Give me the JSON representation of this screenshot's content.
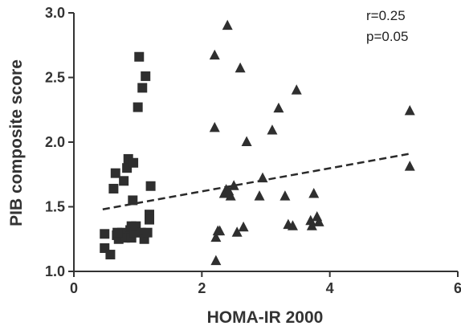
{
  "chart_data": {
    "type": "scatter",
    "xlabel": "HOMA-IR 2000",
    "ylabel": "PIB composite score",
    "xlim": [
      0,
      6
    ],
    "ylim": [
      1.0,
      3.0
    ],
    "xticks": [
      0,
      2,
      4,
      6
    ],
    "yticks": [
      1.0,
      1.5,
      2.0,
      2.5,
      3.0
    ],
    "xtick_labels": [
      "0",
      "2",
      "4",
      "6"
    ],
    "ytick_labels": [
      "1.0",
      "1.5",
      "2.0",
      "2.5",
      "3.0"
    ],
    "grid": false,
    "legend": "none",
    "annotations": [
      "r=0.25",
      "p=0.05"
    ],
    "marker_color": "#2f2f2f",
    "series": [
      {
        "marker": "square",
        "x": [
          0.48,
          0.48,
          0.57,
          0.62,
          0.65,
          0.67,
          0.7,
          0.75,
          0.78,
          0.8,
          0.83,
          0.85,
          0.88,
          0.88,
          0.9,
          0.9,
          0.92,
          0.93,
          0.95,
          0.97,
          1.0,
          1.02,
          1.05,
          1.07,
          1.1,
          1.12,
          1.15,
          1.18,
          1.18,
          1.2,
          0.68
        ],
        "y": [
          1.29,
          1.18,
          1.13,
          1.64,
          1.76,
          1.28,
          1.25,
          1.3,
          1.7,
          1.26,
          1.8,
          1.87,
          1.32,
          1.27,
          1.35,
          1.26,
          1.55,
          1.84,
          1.3,
          1.35,
          2.27,
          2.66,
          1.3,
          2.42,
          1.25,
          2.51,
          1.3,
          1.44,
          1.4,
          1.66,
          1.3
        ]
      },
      {
        "marker": "triangle",
        "x": [
          2.2,
          2.2,
          2.22,
          2.25,
          2.28,
          2.35,
          2.4,
          2.45,
          2.55,
          2.6,
          2.65,
          2.7,
          2.9,
          2.95,
          3.1,
          3.2,
          3.3,
          3.35,
          3.42,
          3.48,
          3.7,
          3.72,
          3.75,
          3.8,
          3.83,
          5.25,
          5.25,
          2.22,
          2.38,
          2.5,
          2.42
        ],
        "y": [
          2.67,
          2.11,
          1.26,
          1.31,
          1.31,
          1.6,
          2.9,
          1.58,
          1.3,
          2.57,
          1.34,
          2.0,
          1.58,
          1.72,
          2.09,
          2.26,
          1.58,
          1.36,
          1.35,
          2.4,
          1.39,
          1.35,
          1.6,
          1.42,
          1.38,
          2.24,
          1.81,
          1.08,
          1.63,
          1.66,
          1.62
        ]
      }
    ],
    "regression": {
      "style": "dashed",
      "x": [
        0.45,
        5.25
      ],
      "y": [
        1.48,
        1.91
      ]
    }
  }
}
